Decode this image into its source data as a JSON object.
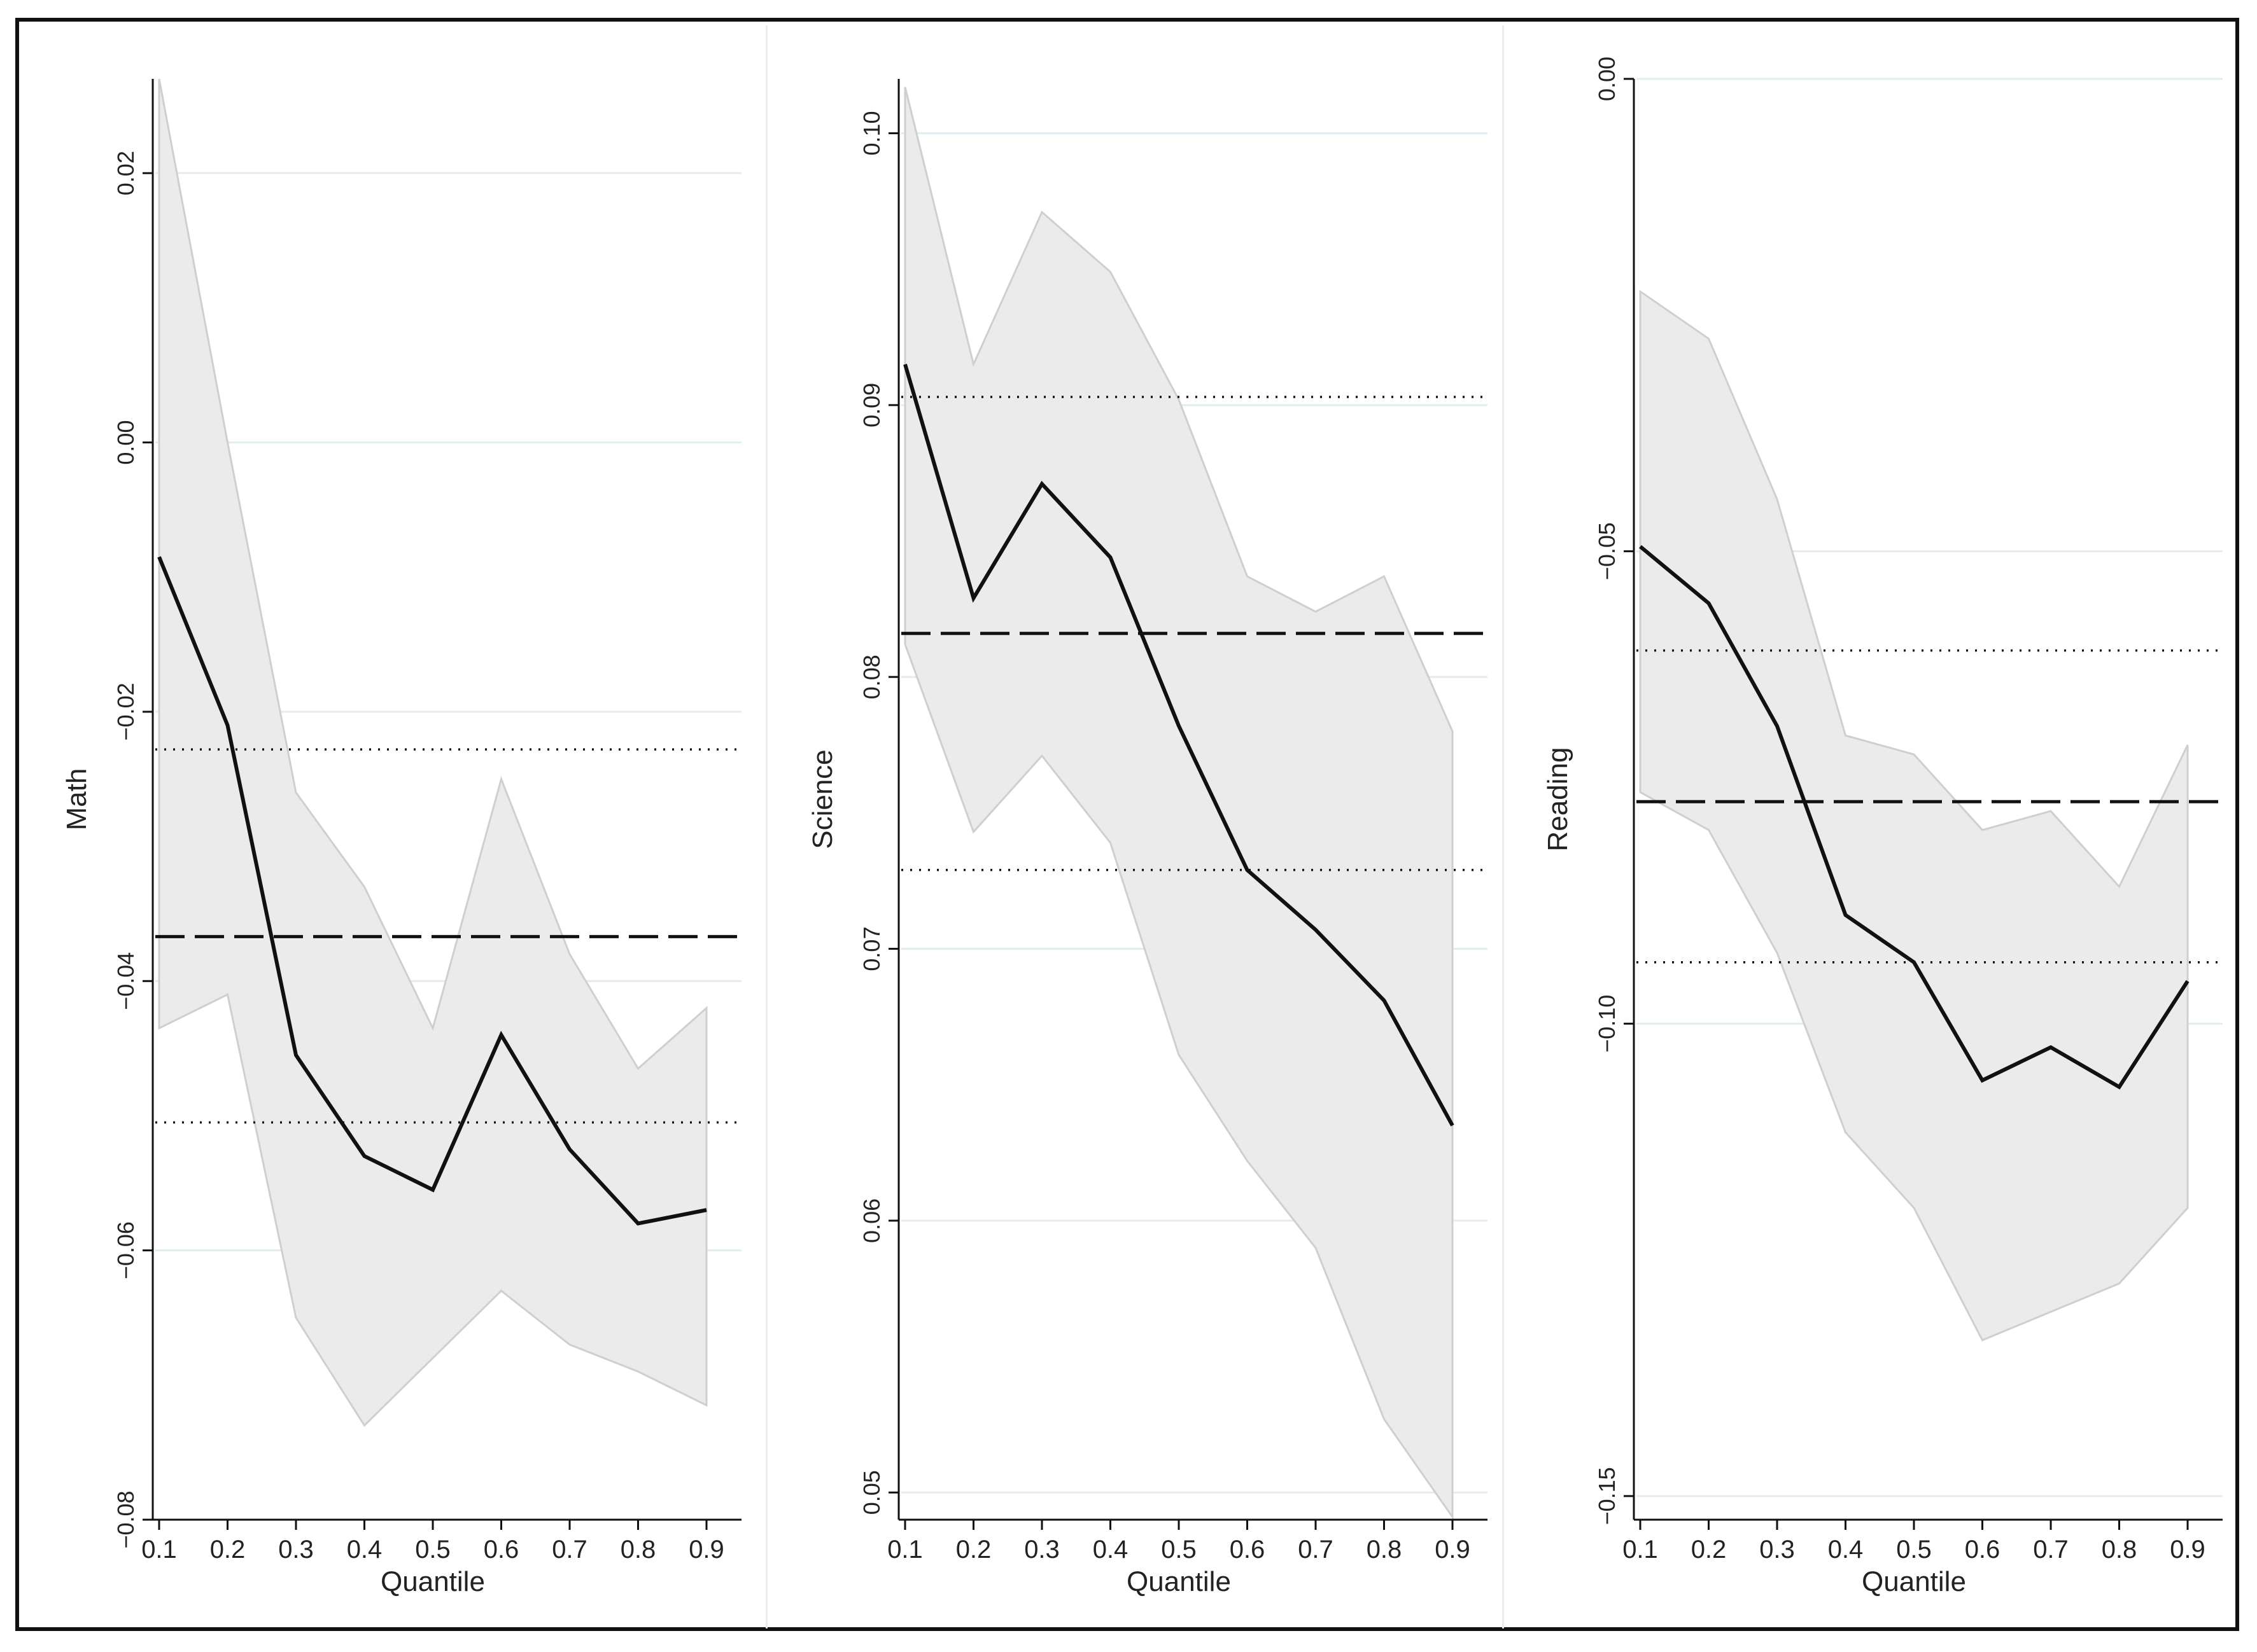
{
  "chart_data": [
    {
      "type": "line",
      "ylabel": "Math",
      "xlabel": "Quantile",
      "x": [
        0.1,
        0.2,
        0.3,
        0.4,
        0.5,
        0.6,
        0.7,
        0.8,
        0.9
      ],
      "xticklabels": [
        "0.1",
        "0.2",
        "0.3",
        "0.4",
        "0.5",
        "0.6",
        "0.7",
        "0.8",
        "0.9"
      ],
      "ylim": [
        -0.08,
        0.027
      ],
      "yticks": [
        -0.08,
        -0.06,
        -0.04,
        -0.02,
        0.0,
        0.02
      ],
      "yticklabels": [
        "-0.08",
        "-0.06",
        "-0.04",
        "-0.02",
        "0.00",
        "0.02"
      ],
      "series": [
        {
          "name": "quantile estimate",
          "style": "solid",
          "values": [
            -0.0085,
            -0.021,
            -0.0455,
            -0.053,
            -0.0555,
            -0.044,
            -0.0525,
            -0.058,
            -0.057
          ]
        },
        {
          "name": "ci upper",
          "style": "band",
          "values": [
            0.027,
            0.0,
            -0.026,
            -0.033,
            -0.0435,
            -0.025,
            -0.038,
            -0.0465,
            -0.042
          ]
        },
        {
          "name": "ci lower",
          "style": "band",
          "values": [
            -0.0435,
            -0.041,
            -0.065,
            -0.073,
            -0.068,
            -0.063,
            -0.067,
            -0.069,
            -0.0715
          ]
        },
        {
          "name": "ols estimate",
          "style": "dashed",
          "value": -0.0367
        },
        {
          "name": "ols ci upper",
          "style": "dotted",
          "value": -0.0228
        },
        {
          "name": "ols ci lower",
          "style": "dotted",
          "value": -0.0505
        }
      ]
    },
    {
      "type": "line",
      "ylabel": "Science",
      "xlabel": "Quantile",
      "x": [
        0.1,
        0.2,
        0.3,
        0.4,
        0.5,
        0.6,
        0.7,
        0.8,
        0.9
      ],
      "xticklabels": [
        "0.1",
        "0.2",
        "0.3",
        "0.4",
        "0.5",
        "0.6",
        "0.7",
        "0.8",
        "0.9"
      ],
      "ylim": [
        0.049,
        0.102
      ],
      "yticks": [
        0.05,
        0.06,
        0.07,
        0.08,
        0.09,
        0.1
      ],
      "yticklabels": [
        "0.05",
        "0.06",
        "0.07",
        "0.08",
        "0.09",
        "0.10"
      ],
      "series": [
        {
          "name": "quantile estimate",
          "style": "solid",
          "values": [
            0.0915,
            0.0829,
            0.0871,
            0.0844,
            0.0782,
            0.0729,
            0.0707,
            0.0681,
            0.0635
          ]
        },
        {
          "name": "ci upper",
          "style": "band",
          "values": [
            0.1017,
            0.0915,
            0.0971,
            0.0949,
            0.0902,
            0.0837,
            0.0824,
            0.0837,
            0.078
          ]
        },
        {
          "name": "ci lower",
          "style": "band",
          "values": [
            0.0812,
            0.0743,
            0.0771,
            0.0739,
            0.0661,
            0.0622,
            0.059,
            0.0527,
            0.0491
          ]
        },
        {
          "name": "ols estimate",
          "style": "dashed",
          "value": 0.0816
        },
        {
          "name": "ols ci upper",
          "style": "dotted",
          "value": 0.0903
        },
        {
          "name": "ols ci lower",
          "style": "dotted",
          "value": 0.0729
        }
      ]
    },
    {
      "type": "line",
      "ylabel": "Reading",
      "xlabel": "Quantile",
      "x": [
        0.1,
        0.2,
        0.3,
        0.4,
        0.5,
        0.6,
        0.7,
        0.8,
        0.9
      ],
      "xticklabels": [
        "0.1",
        "0.2",
        "0.3",
        "0.4",
        "0.5",
        "0.6",
        "0.7",
        "0.8",
        "0.9"
      ],
      "ylim": [
        -0.1525,
        0.0
      ],
      "yticks": [
        -0.15,
        -0.1,
        -0.05,
        0.0
      ],
      "yticklabels": [
        "-0.15",
        "-0.10",
        "-0.05",
        "0.00"
      ],
      "series": [
        {
          "name": "quantile estimate",
          "style": "solid",
          "values": [
            -0.0495,
            -0.0555,
            -0.0685,
            -0.0885,
            -0.0935,
            -0.106,
            -0.1025,
            -0.1067,
            -0.0955
          ]
        },
        {
          "name": "ci upper",
          "style": "band",
          "values": [
            -0.0225,
            -0.0275,
            -0.0445,
            -0.0695,
            -0.0715,
            -0.0795,
            -0.0775,
            -0.0855,
            -0.0705
          ]
        },
        {
          "name": "ci lower",
          "style": "band",
          "values": [
            -0.0755,
            -0.0795,
            -0.0925,
            -0.1115,
            -0.1195,
            -0.1335,
            -0.1305,
            -0.1275,
            -0.1195
          ]
        },
        {
          "name": "ols estimate",
          "style": "dashed",
          "value": -0.0765
        },
        {
          "name": "ols ci upper",
          "style": "dotted",
          "value": -0.0605
        },
        {
          "name": "ols ci lower",
          "style": "dotted",
          "value": -0.0935
        }
      ]
    }
  ]
}
